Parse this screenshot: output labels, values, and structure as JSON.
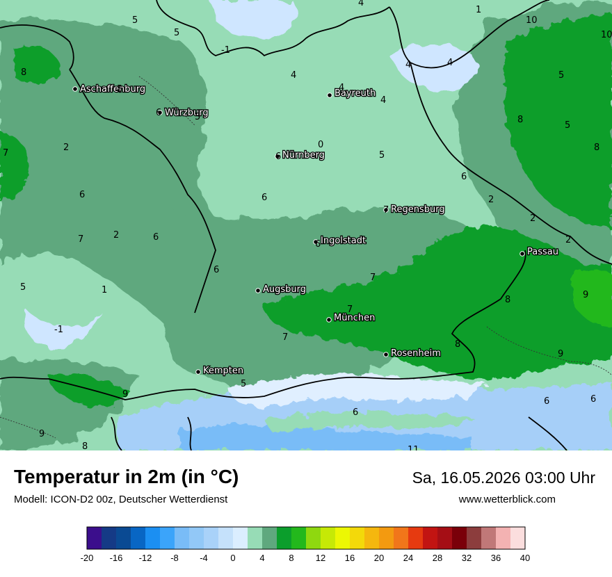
{
  "title": "Temperatur in 2m (in °C)",
  "model": "Modell: ICON-D2 00z, Deutscher Wetterdienst",
  "datetime": "Sa, 16.05.2026 03:00 Uhr",
  "website": "www.wetterblick.com",
  "colors": {
    "cold_blue": "#cfe6ff",
    "light_mint": "#97dcb6",
    "mid_green": "#5fa87e",
    "bright_green": "#0b9e2c",
    "lime_green": "#23b81c",
    "alpine_blue": "#a6cff8",
    "alpine_white": "#e0efff"
  },
  "cities": [
    {
      "name": "Aschaffenburg"
    },
    {
      "name": "Würzburg"
    },
    {
      "name": "Bayreuth"
    },
    {
      "name": "Nürnberg"
    },
    {
      "name": "Regensburg"
    },
    {
      "name": "Ingolstadt"
    },
    {
      "name": "Passau"
    },
    {
      "name": "Augsburg"
    },
    {
      "name": "München"
    },
    {
      "name": "Rosenheim"
    },
    {
      "name": "Kempten"
    }
  ],
  "values": [
    "4",
    "1",
    "10",
    "10",
    "5",
    "5",
    "-1",
    "4",
    "4",
    "8",
    "5",
    "4",
    "4",
    "5",
    "4",
    "6",
    "5",
    "8",
    "7",
    "2",
    "0",
    "5",
    "8",
    "5",
    "6",
    "6",
    "2",
    "2",
    "6",
    "2",
    "7",
    "2",
    "6",
    "6",
    "6",
    "7",
    "5",
    "1",
    "6",
    "7",
    "9",
    "8",
    "-1",
    "7",
    "7",
    "8",
    "9",
    "9",
    "5",
    "6",
    "6",
    "6",
    "9",
    "8",
    "11"
  ],
  "legend": {
    "colors": [
      "#3b0e8c",
      "#153a86",
      "#0a4a93",
      "#0866c4",
      "#1b8ff2",
      "#3ba4fa",
      "#79bcf7",
      "#92c8f7",
      "#a9d2f9",
      "#c5e1fb",
      "#dbeeff",
      "#97dcb6",
      "#5fa87e",
      "#0b9e2c",
      "#23b81c",
      "#8fd80f",
      "#c6e906",
      "#ecf703",
      "#f3d90a",
      "#f5b70e",
      "#f39a10",
      "#f1761a",
      "#e63a10",
      "#c21412",
      "#a50e15",
      "#7a0009",
      "#8c3d3d",
      "#c07878",
      "#f3b2b2",
      "#fbdede"
    ],
    "ticks": [
      "-20",
      "-16",
      "-12",
      "-8",
      "-4",
      "0",
      "4",
      "8",
      "12",
      "16",
      "20",
      "24",
      "28",
      "32",
      "36",
      "40"
    ]
  }
}
